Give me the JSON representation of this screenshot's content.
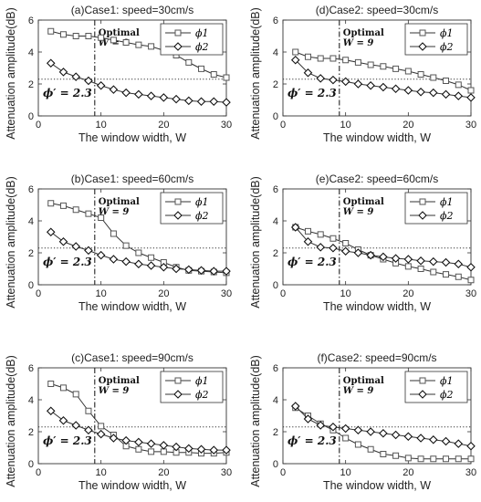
{
  "y_axis_label": "Attenuation amplitude(dB)",
  "annotations": {
    "optimal": "Optimal",
    "w_eq": "W = 9",
    "phi_eq": "ϕ′ = 2.3"
  },
  "chart_data": [
    {
      "type": "line",
      "title": "(a)Case1: speed=30cm/s",
      "xlabel": "The window width, W",
      "ylabel": "Attenuation amplitude(dB)",
      "xlim": [
        0,
        30
      ],
      "ylim": [
        0,
        6
      ],
      "xticks": [
        0,
        10,
        20,
        30
      ],
      "yticks": [
        0,
        2,
        4,
        6
      ],
      "x": [
        2,
        4,
        6,
        8,
        10,
        12,
        14,
        16,
        18,
        20,
        22,
        24,
        26,
        28,
        30
      ],
      "series": [
        {
          "name": "ϕ1",
          "marker": "square",
          "values": [
            5.3,
            5.1,
            5.0,
            5.0,
            4.9,
            4.75,
            4.6,
            4.45,
            4.35,
            4.1,
            3.8,
            3.35,
            2.95,
            2.6,
            2.4
          ]
        },
        {
          "name": "ϕ2",
          "marker": "diamond",
          "values": [
            3.3,
            2.75,
            2.45,
            2.2,
            1.9,
            1.65,
            1.45,
            1.35,
            1.25,
            1.15,
            1.05,
            0.95,
            0.9,
            0.9,
            0.85
          ]
        }
      ],
      "optimal_w": 9,
      "threshold": 2.3,
      "grid": false,
      "legend": "top-right"
    },
    {
      "type": "line",
      "title": "(d)Case2: speed=30cm/s",
      "xlabel": "The window width, W",
      "ylabel": "Attenuation amplitude(dB)",
      "xlim": [
        0,
        30
      ],
      "ylim": [
        0,
        6
      ],
      "xticks": [
        0,
        10,
        20,
        30
      ],
      "yticks": [
        0,
        2,
        4,
        6
      ],
      "x": [
        2,
        4,
        6,
        8,
        10,
        12,
        14,
        16,
        18,
        20,
        22,
        24,
        26,
        28,
        30
      ],
      "series": [
        {
          "name": "ϕ1",
          "marker": "square",
          "values": [
            4.0,
            3.7,
            3.6,
            3.6,
            3.5,
            3.35,
            3.2,
            3.1,
            2.95,
            2.8,
            2.6,
            2.4,
            2.2,
            1.95,
            1.6
          ]
        },
        {
          "name": "ϕ2",
          "marker": "diamond",
          "values": [
            3.5,
            2.7,
            2.35,
            2.25,
            2.15,
            2.0,
            1.9,
            1.8,
            1.7,
            1.6,
            1.5,
            1.45,
            1.35,
            1.25,
            1.15
          ]
        }
      ],
      "optimal_w": 9,
      "threshold": 2.3,
      "grid": false,
      "legend": "top-right"
    },
    {
      "type": "line",
      "title": "(b)Case1: speed=60cm/s",
      "xlabel": "The window width, W",
      "ylabel": "Attenuation amplitude(dB)",
      "xlim": [
        0,
        30
      ],
      "ylim": [
        0,
        6
      ],
      "xticks": [
        0,
        10,
        20,
        30
      ],
      "yticks": [
        0,
        2,
        4,
        6
      ],
      "x": [
        2,
        4,
        6,
        8,
        10,
        12,
        14,
        16,
        18,
        20,
        22,
        24,
        26,
        28,
        30
      ],
      "series": [
        {
          "name": "ϕ1",
          "marker": "square",
          "values": [
            5.1,
            4.95,
            4.7,
            4.45,
            4.2,
            3.2,
            2.45,
            2.0,
            1.7,
            1.4,
            1.1,
            0.9,
            0.85,
            0.8,
            0.75
          ]
        },
        {
          "name": "ϕ2",
          "marker": "diamond",
          "values": [
            3.3,
            2.7,
            2.4,
            2.15,
            1.85,
            1.6,
            1.45,
            1.3,
            1.2,
            1.1,
            1.0,
            0.95,
            0.9,
            0.85,
            0.85
          ]
        }
      ],
      "optimal_w": 9,
      "threshold": 2.3,
      "grid": false,
      "legend": "top-right"
    },
    {
      "type": "line",
      "title": "(e)Case2: speed=60cm/s",
      "xlabel": "The window width, W",
      "ylabel": "Attenuation amplitude(dB)",
      "xlim": [
        0,
        30
      ],
      "ylim": [
        0,
        6
      ],
      "xticks": [
        0,
        10,
        20,
        30
      ],
      "yticks": [
        0,
        2,
        4,
        6
      ],
      "x": [
        2,
        4,
        6,
        8,
        10,
        12,
        14,
        16,
        18,
        20,
        22,
        24,
        26,
        28,
        30
      ],
      "series": [
        {
          "name": "ϕ1",
          "marker": "square",
          "values": [
            3.6,
            3.35,
            3.15,
            2.9,
            2.6,
            2.2,
            1.85,
            1.6,
            1.35,
            1.15,
            1.0,
            0.8,
            0.65,
            0.5,
            0.3
          ]
        },
        {
          "name": "ϕ2",
          "marker": "diamond",
          "values": [
            3.6,
            2.7,
            2.35,
            2.3,
            2.1,
            2.0,
            1.85,
            1.75,
            1.65,
            1.6,
            1.5,
            1.45,
            1.4,
            1.3,
            1.1
          ]
        }
      ],
      "optimal_w": 9,
      "threshold": 2.3,
      "grid": false,
      "legend": "top-right"
    },
    {
      "type": "line",
      "title": "(c)Case1: speed=90cm/s",
      "xlabel": "The window width, W",
      "ylabel": "Attenuation amplitude(dB)",
      "xlim": [
        0,
        30
      ],
      "ylim": [
        0,
        6
      ],
      "xticks": [
        0,
        10,
        20,
        30
      ],
      "yticks": [
        0,
        2,
        4,
        6
      ],
      "x": [
        2,
        4,
        6,
        8,
        10,
        12,
        14,
        16,
        18,
        20,
        22,
        24,
        26,
        28,
        30
      ],
      "series": [
        {
          "name": "ϕ1",
          "marker": "square",
          "values": [
            5.0,
            4.75,
            4.35,
            3.3,
            2.35,
            1.8,
            1.1,
            0.9,
            0.75,
            0.75,
            0.7,
            0.7,
            0.65,
            0.65,
            0.7
          ]
        },
        {
          "name": "ϕ2",
          "marker": "diamond",
          "values": [
            3.3,
            2.7,
            2.4,
            2.1,
            1.85,
            1.6,
            1.45,
            1.35,
            1.25,
            1.15,
            1.05,
            0.95,
            0.9,
            0.85,
            0.85
          ]
        }
      ],
      "optimal_w": 9,
      "threshold": 2.3,
      "grid": false,
      "legend": "top-right"
    },
    {
      "type": "line",
      "title": "(f)Case2: speed=90cm/s",
      "xlabel": "The window width, W",
      "ylabel": "Attenuation amplitude(dB)",
      "xlim": [
        0,
        30
      ],
      "ylim": [
        0,
        6
      ],
      "xticks": [
        0,
        10,
        20,
        30
      ],
      "yticks": [
        0,
        2,
        4,
        6
      ],
      "x": [
        2,
        4,
        6,
        8,
        10,
        12,
        14,
        16,
        18,
        20,
        22,
        24,
        26,
        28,
        30
      ],
      "series": [
        {
          "name": "ϕ1",
          "marker": "square",
          "values": [
            3.5,
            3.0,
            2.5,
            2.1,
            1.6,
            1.2,
            0.9,
            0.6,
            0.5,
            0.35,
            0.3,
            0.3,
            0.3,
            0.3,
            0.3
          ]
        },
        {
          "name": "ϕ2",
          "marker": "diamond",
          "values": [
            3.6,
            2.8,
            2.4,
            2.3,
            2.2,
            2.1,
            2.0,
            1.9,
            1.8,
            1.7,
            1.6,
            1.5,
            1.4,
            1.25,
            1.1
          ]
        }
      ],
      "optimal_w": 9,
      "threshold": 2.3,
      "grid": false,
      "legend": "top-right"
    }
  ]
}
